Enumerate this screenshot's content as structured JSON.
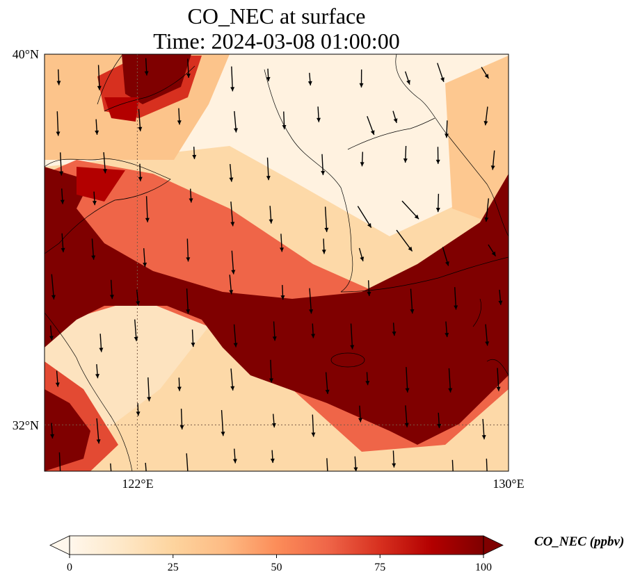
{
  "title": {
    "line1": "CO_NEC at surface",
    "line2": "Time: 2024-03-08 01:00:00"
  },
  "map": {
    "lat_range": [
      31.0,
      40.0
    ],
    "lon_range": [
      120.0,
      130.0
    ],
    "lat_ticks": [
      {
        "value": 40,
        "label": "40°N"
      },
      {
        "value": 32,
        "label": "32°N"
      }
    ],
    "lon_ticks": [
      {
        "value": 122,
        "label": "122°E"
      },
      {
        "value": 130,
        "label": "130°E"
      }
    ],
    "gridlines": {
      "lat": 32,
      "lon": 122,
      "style": "dotted"
    },
    "field": "CO_NEC",
    "units": "ppbv",
    "high_value_bands": [
      {
        "description": "band from Yellow Sea coast of China across to southern Korea / Japan",
        "value": 100
      },
      {
        "description": "northern Bohai / Liaodong coast",
        "value": 100
      },
      {
        "description": "East China Sea southeast of Jeju",
        "value": 100
      }
    ],
    "background_value": 5,
    "wind_vectors": "present (black arrows, predominantly north-to-south)"
  },
  "colorbar": {
    "label": "CO_NEC (ppbv)",
    "min": 0,
    "max": 100,
    "ticks": [
      "0",
      "25",
      "50",
      "75",
      "100"
    ],
    "colormap": "OrRd",
    "colors": [
      "#fff7ec",
      "#fee8c8",
      "#fdd49e",
      "#fdbb84",
      "#fc8d59",
      "#ef6548",
      "#d7301f",
      "#b30000",
      "#7f0000"
    ],
    "extend": "both"
  }
}
